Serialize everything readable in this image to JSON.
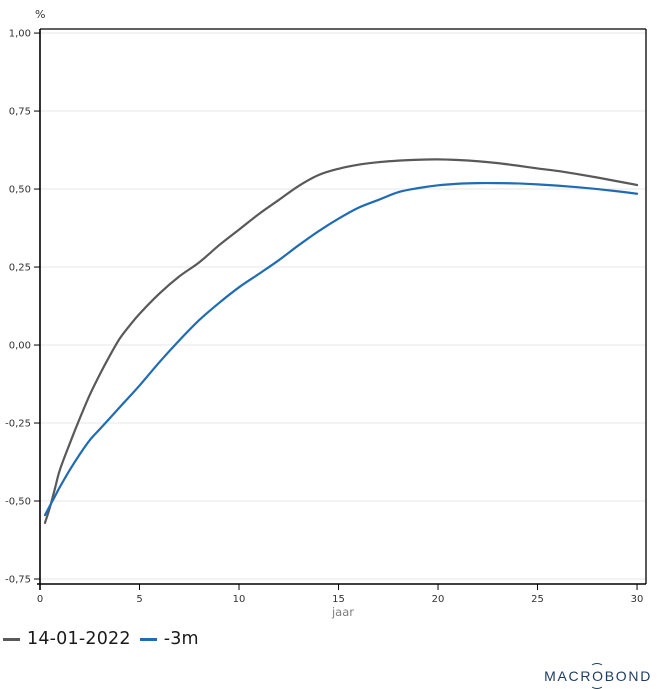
{
  "chart_data": {
    "type": "line",
    "title": "",
    "ylabel": "%",
    "xlabel": "jaar",
    "grid": "horizontal",
    "legend_position": "bottom-left",
    "xlim": [
      0,
      30.45
    ],
    "ylim": [
      -0.766,
      1.013
    ],
    "xticks": {
      "values": [
        0,
        5,
        10,
        15,
        20,
        25,
        30
      ],
      "labels": [
        "0",
        "5",
        "10",
        "15",
        "20",
        "25",
        "30"
      ]
    },
    "yticks": {
      "values": [
        1.0,
        0.75,
        0.5,
        0.25,
        0.0,
        -0.25,
        -0.5,
        -0.75
      ],
      "labels": [
        "1,00",
        "0,75",
        "0,50",
        "0,25",
        "0,00",
        "-0,25",
        "-0,50",
        "-0,75"
      ]
    },
    "x": [
      0.25,
      0.5,
      0.75,
      1,
      1.5,
      2,
      2.5,
      3,
      3.5,
      4,
      4.5,
      5,
      6,
      7,
      8,
      9,
      10,
      11,
      12,
      13,
      14,
      15,
      16,
      17,
      18,
      19,
      20,
      21,
      22,
      23,
      24,
      25,
      26,
      27,
      28,
      29,
      30
    ],
    "series": [
      {
        "name": "14-01-2022",
        "color": "#58595b",
        "values": [
          -0.57,
          -0.52,
          -0.46,
          -0.4,
          -0.315,
          -0.235,
          -0.16,
          -0.095,
          -0.035,
          0.02,
          0.062,
          0.1,
          0.165,
          0.22,
          0.265,
          0.32,
          0.37,
          0.42,
          0.465,
          0.51,
          0.545,
          0.565,
          0.578,
          0.586,
          0.591,
          0.594,
          0.595,
          0.593,
          0.589,
          0.583,
          0.575,
          0.566,
          0.558,
          0.548,
          0.537,
          0.525,
          0.513
        ]
      },
      {
        "name": "-3m",
        "color": "#1f6cb4",
        "values": [
          -0.545,
          -0.515,
          -0.485,
          -0.455,
          -0.4,
          -0.35,
          -0.305,
          -0.27,
          -0.235,
          -0.2,
          -0.165,
          -0.13,
          -0.055,
          0.015,
          0.08,
          0.135,
          0.185,
          0.228,
          0.272,
          0.32,
          0.365,
          0.405,
          0.44,
          0.465,
          0.49,
          0.503,
          0.512,
          0.517,
          0.519,
          0.519,
          0.518,
          0.515,
          0.511,
          0.506,
          0.5,
          0.493,
          0.485
        ]
      }
    ]
  },
  "colors": {
    "background": "#ffffff",
    "grid": "#e7e7e7",
    "axis": "#000000",
    "border": "#000000",
    "tick_text": "#333333",
    "axis_title_text": "#7f7f7f",
    "legend_text": "#1a1a1a"
  },
  "branding": {
    "logo_part1": "MACR",
    "logo_o": "O",
    "logo_part2": "BOND",
    "color": "#1e3c5f"
  }
}
